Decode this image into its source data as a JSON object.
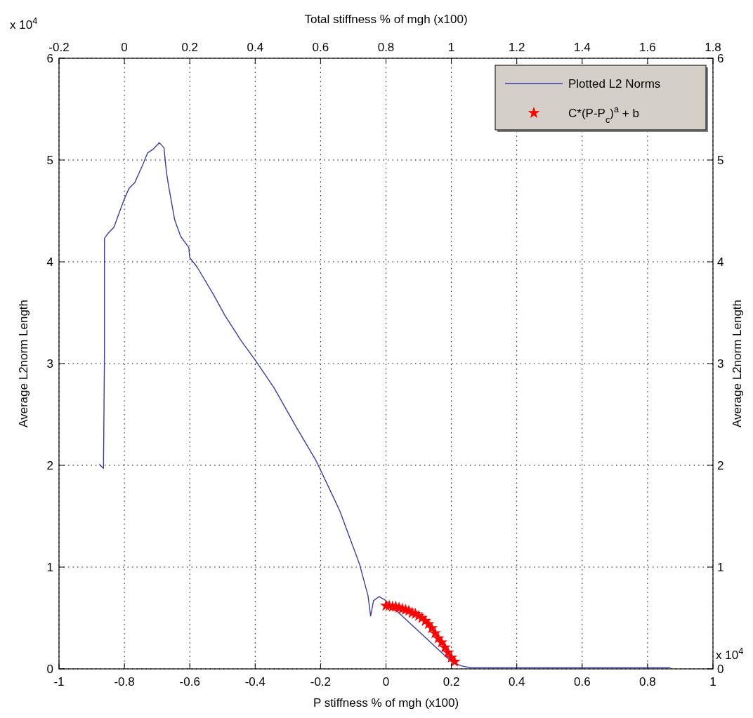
{
  "chart_data": {
    "type": "line",
    "xlabel": "P stiffness % of mgh (x100)",
    "x2label": "Total stiffness % of mgh (x100)",
    "ylabel": "Average L2norm Length",
    "y2label": "Average L2norm Length",
    "xlim": [
      -1,
      1
    ],
    "xticks": [
      -1,
      -0.8,
      -0.6,
      -0.4,
      -0.2,
      0,
      0.2,
      0.4,
      0.6,
      0.8,
      1
    ],
    "x2lim": [
      -0.2,
      1.8
    ],
    "x2ticks": [
      -0.2,
      0,
      0.2,
      0.4,
      0.6,
      0.8,
      1,
      1.2,
      1.4,
      1.6,
      1.8
    ],
    "ylim": [
      0,
      6
    ],
    "yticks": [
      0,
      1,
      2,
      3,
      4,
      5,
      6
    ],
    "y2lim": [
      0,
      6
    ],
    "y2ticks": [
      0,
      1,
      2,
      3,
      4,
      5,
      6
    ],
    "grid": true,
    "legend": "top right",
    "annotations": [
      "x 10$^{4}$",
      "x 10$^{4}$"
    ],
    "series": [
      {
        "name": "Plotted L2 Norms",
        "color": "#3c3ca8",
        "x": [
          -0.877,
          -0.864,
          -0.861,
          -0.861,
          -0.85,
          -0.832,
          -0.8,
          -0.786,
          -0.768,
          -0.743,
          -0.729,
          -0.711,
          -0.693,
          -0.679,
          -0.671,
          -0.664,
          -0.646,
          -0.628,
          -0.603,
          -0.6,
          -0.578,
          -0.528,
          -0.492,
          -0.442,
          -0.399,
          -0.342,
          -0.277,
          -0.213,
          -0.173,
          -0.141,
          -0.081,
          -0.055,
          -0.047,
          -0.038,
          -0.021,
          -0.004,
          0.2,
          0.23,
          0.26,
          0.4,
          0.6,
          0.8,
          0.87
        ],
        "values": [
          2.01,
          1.97,
          3.09,
          4.23,
          4.28,
          4.34,
          4.62,
          4.72,
          4.78,
          4.96,
          5.07,
          5.11,
          5.17,
          5.12,
          4.87,
          4.73,
          4.41,
          4.25,
          4.14,
          4.04,
          3.95,
          3.68,
          3.47,
          3.22,
          3.03,
          2.76,
          2.39,
          2.04,
          1.77,
          1.55,
          1.03,
          0.72,
          0.52,
          0.67,
          0.71,
          0.68,
          0.07,
          0.03,
          0.01,
          0.01,
          0.01,
          0.01,
          0.01
        ]
      },
      {
        "name": "C*(P-P$_{c}$)$^{a}$ + b",
        "type": "scatter",
        "marker": "star",
        "color": "#ff0000",
        "x": [
          0,
          0.01,
          0.02,
          0.03,
          0.04,
          0.05,
          0.06,
          0.07,
          0.08,
          0.09,
          0.1,
          0.11,
          0.12,
          0.13,
          0.14,
          0.15,
          0.16,
          0.17,
          0.18,
          0.19,
          0.2,
          0.21
        ],
        "values": [
          0.62,
          0.62,
          0.61,
          0.61,
          0.6,
          0.59,
          0.58,
          0.57,
          0.55,
          0.54,
          0.52,
          0.5,
          0.47,
          0.44,
          0.4,
          0.35,
          0.3,
          0.26,
          0.21,
          0.16,
          0.11,
          0.07
        ]
      }
    ]
  }
}
